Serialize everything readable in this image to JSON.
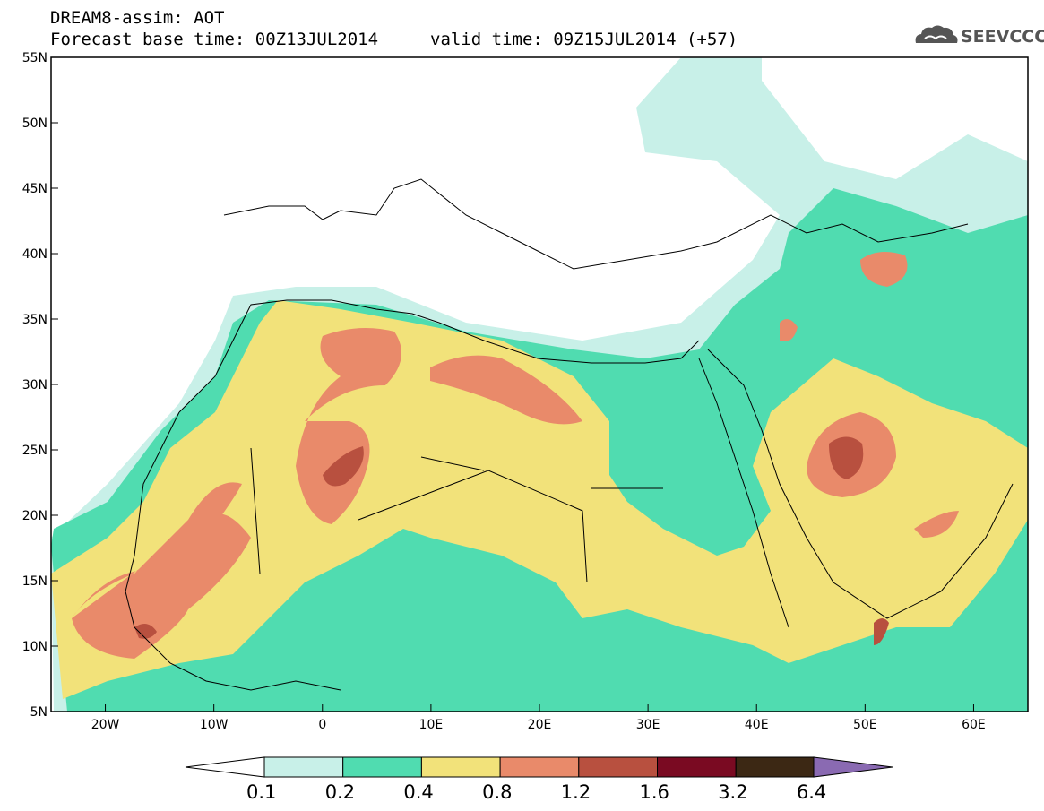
{
  "header": {
    "title_line1": "DREAM8-assim: AOT",
    "title_line2": "Forecast base time: 00Z13JUL2014",
    "valid_time": "valid time: 09Z15JUL2014 (+57)",
    "logo_text": "SEEVCCC"
  },
  "map": {
    "lat_labels": [
      "55N",
      "50N",
      "45N",
      "40N",
      "35N",
      "30N",
      "25N",
      "20N",
      "15N",
      "10N",
      "5N"
    ],
    "lon_labels": [
      "20W",
      "10W",
      "0",
      "10E",
      "20E",
      "30E",
      "40E",
      "50E",
      "60E"
    ],
    "lat_range": [
      5,
      55
    ],
    "lon_range": [
      -25,
      65
    ]
  },
  "colorbar": {
    "labels": [
      "0.1",
      "0.2",
      "0.4",
      "0.8",
      "1.2",
      "1.6",
      "3.2",
      "6.4"
    ],
    "colors": [
      "#c8f0e8",
      "#50dcb0",
      "#f2e27a",
      "#e98a6a",
      "#b8503f",
      "#7a0a22",
      "#3c2814",
      "#8a6ab2"
    ]
  }
}
